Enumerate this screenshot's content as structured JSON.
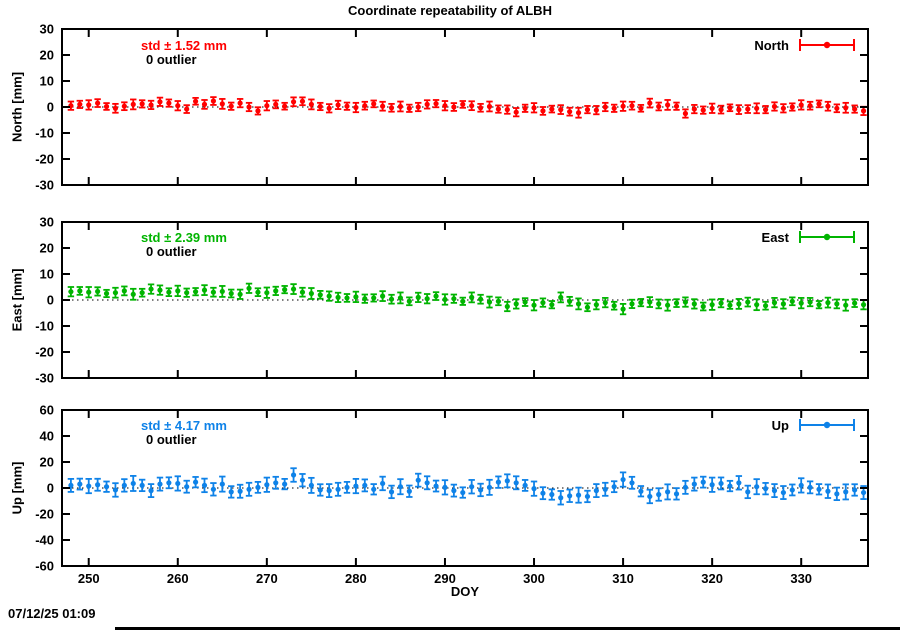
{
  "title": "Coordinate repeatability of ALBH",
  "timestamp": "07/12/25 01:09",
  "axes": {
    "xlabel": "DOY",
    "xlim": [
      247,
      337.5
    ],
    "xticks": [
      250,
      260,
      270,
      280,
      290,
      300,
      310,
      320,
      330
    ],
    "grid": "zero-line-dotted",
    "legend_position": "top-right-inside"
  },
  "chart_data": [
    {
      "type": "errorbar",
      "name": "North",
      "legend_label": "North",
      "std_label": "std ± 1.52 mm",
      "outlier_label": "0 outlier",
      "color": "#ff0000",
      "ylabel": "North [mm]",
      "ylim": [
        -30,
        30
      ],
      "yticks": [
        -30,
        -20,
        -10,
        0,
        10,
        20,
        30
      ],
      "x": [
        248,
        249,
        250,
        251,
        252,
        253,
        254,
        255,
        256,
        257,
        258,
        259,
        260,
        261,
        262,
        263,
        264,
        265,
        266,
        267,
        268,
        269,
        270,
        271,
        272,
        273,
        274,
        275,
        276,
        277,
        278,
        279,
        280,
        281,
        282,
        283,
        284,
        285,
        286,
        287,
        288,
        289,
        290,
        291,
        292,
        293,
        294,
        295,
        296,
        297,
        298,
        299,
        300,
        301,
        302,
        303,
        304,
        305,
        306,
        307,
        308,
        309,
        310,
        311,
        312,
        313,
        314,
        315,
        316,
        317,
        318,
        319,
        320,
        321,
        322,
        323,
        324,
        325,
        326,
        327,
        328,
        329,
        330,
        331,
        332,
        333,
        334,
        335,
        336,
        337
      ],
      "y": [
        0.5,
        1.0,
        0.8,
        1.5,
        0.2,
        -0.5,
        0.3,
        1.0,
        1.2,
        0.8,
        2.0,
        1.5,
        0.5,
        -0.8,
        2.2,
        1.0,
        2.3,
        1.2,
        0.3,
        1.5,
        0.0,
        -1.5,
        0.5,
        1.0,
        0.3,
        2.0,
        2.2,
        1.0,
        0.2,
        -0.5,
        0.8,
        0.3,
        -0.2,
        0.5,
        1.2,
        0.3,
        -0.3,
        0.2,
        -0.5,
        0.0,
        1.0,
        1.3,
        0.5,
        0.0,
        1.0,
        0.5,
        -0.3,
        0.2,
        -0.8,
        -1.0,
        -2.0,
        -0.5,
        -0.3,
        -1.5,
        -0.8,
        -1.0,
        -1.8,
        -2.2,
        -1.0,
        -1.2,
        0.0,
        -0.5,
        0.3,
        0.5,
        -0.5,
        1.5,
        0.2,
        0.8,
        0.3,
        -2.5,
        -0.8,
        -1.2,
        -0.5,
        -1.0,
        -0.3,
        -1.0,
        -0.8,
        -0.5,
        -1.0,
        0.2,
        -0.5,
        0.0,
        0.8,
        0.5,
        1.2,
        0.3,
        -0.5,
        -0.3,
        -0.8,
        -1.5
      ],
      "yerr": [
        1.6,
        1.4,
        1.8,
        1.5,
        1.3,
        1.7,
        1.5,
        1.9,
        1.4,
        1.6,
        1.6,
        1.4,
        1.8,
        1.5,
        1.3,
        1.7,
        1.5,
        1.9,
        1.4,
        1.6,
        1.6,
        1.4,
        1.8,
        1.5,
        1.3,
        1.7,
        1.5,
        1.9,
        1.4,
        1.6,
        1.6,
        1.4,
        1.8,
        1.5,
        1.3,
        1.7,
        1.5,
        1.9,
        1.4,
        1.6,
        1.6,
        1.4,
        1.8,
        1.5,
        1.3,
        1.7,
        1.5,
        1.9,
        1.4,
        1.6,
        1.6,
        1.4,
        1.8,
        1.5,
        1.3,
        1.7,
        1.5,
        1.9,
        1.4,
        1.6,
        1.6,
        1.4,
        1.8,
        1.5,
        1.3,
        1.7,
        1.5,
        1.9,
        1.4,
        1.6,
        1.6,
        1.4,
        1.8,
        1.5,
        1.3,
        1.7,
        1.5,
        1.9,
        1.4,
        1.6,
        1.6,
        1.4,
        1.8,
        1.5,
        1.3,
        1.7,
        1.5,
        1.9,
        1.4,
        1.6
      ]
    },
    {
      "type": "errorbar",
      "name": "East",
      "legend_label": "East",
      "std_label": "std ± 2.39 mm",
      "outlier_label": "0 outlier",
      "color": "#00b400",
      "ylabel": "East [mm]",
      "ylim": [
        -30,
        30
      ],
      "yticks": [
        -30,
        -20,
        -10,
        0,
        10,
        20,
        30
      ],
      "x": [
        248,
        249,
        250,
        251,
        252,
        253,
        254,
        255,
        256,
        257,
        258,
        259,
        260,
        261,
        262,
        263,
        264,
        265,
        266,
        267,
        268,
        269,
        270,
        271,
        272,
        273,
        274,
        275,
        276,
        277,
        278,
        279,
        280,
        281,
        282,
        283,
        284,
        285,
        286,
        287,
        288,
        289,
        290,
        291,
        292,
        293,
        294,
        295,
        296,
        297,
        298,
        299,
        300,
        301,
        302,
        303,
        304,
        305,
        306,
        307,
        308,
        309,
        310,
        311,
        312,
        313,
        314,
        315,
        316,
        317,
        318,
        319,
        320,
        321,
        322,
        323,
        324,
        325,
        326,
        327,
        328,
        329,
        330,
        331,
        332,
        333,
        334,
        335,
        336,
        337
      ],
      "y": [
        3.2,
        3.5,
        3.0,
        3.3,
        2.5,
        2.8,
        3.5,
        2.2,
        2.8,
        4.2,
        3.8,
        3.0,
        3.5,
        2.8,
        3.2,
        3.8,
        3.0,
        3.3,
        2.5,
        2.2,
        4.5,
        3.0,
        2.8,
        3.5,
        4.0,
        4.2,
        3.0,
        2.5,
        2.0,
        1.5,
        1.0,
        0.8,
        1.2,
        0.5,
        0.8,
        1.5,
        0.3,
        0.8,
        -0.5,
        1.0,
        0.5,
        1.5,
        0.2,
        0.5,
        -0.5,
        1.0,
        0.3,
        -0.8,
        -0.5,
        -2.5,
        -1.5,
        -0.8,
        -2.0,
        -1.0,
        -1.8,
        1.0,
        -0.5,
        -1.5,
        -2.8,
        -1.8,
        -1.0,
        -2.2,
        -3.5,
        -1.5,
        -1.0,
        -0.8,
        -1.5,
        -2.0,
        -1.2,
        -0.8,
        -1.5,
        -2.5,
        -1.8,
        -1.2,
        -2.0,
        -1.5,
        -0.8,
        -1.8,
        -2.2,
        -1.0,
        -1.5,
        -0.5,
        -1.2,
        -0.8,
        -1.8,
        -1.0,
        -1.5,
        -2.0,
        -1.2,
        -1.8
      ],
      "yerr": [
        1.8,
        1.5,
        2.0,
        1.6,
        1.4,
        1.9,
        1.7,
        2.1,
        1.5,
        1.8,
        1.8,
        1.5,
        2.0,
        1.6,
        1.4,
        1.9,
        1.7,
        2.1,
        1.5,
        1.8,
        1.8,
        1.5,
        2.0,
        1.6,
        1.4,
        1.9,
        1.7,
        2.1,
        1.5,
        1.8,
        1.8,
        1.5,
        2.0,
        1.6,
        1.4,
        1.9,
        1.7,
        2.1,
        1.5,
        1.8,
        1.8,
        1.5,
        2.0,
        1.6,
        1.4,
        1.9,
        1.7,
        2.1,
        1.5,
        1.8,
        1.8,
        1.5,
        2.0,
        1.6,
        1.4,
        1.9,
        1.7,
        2.1,
        1.5,
        1.8,
        1.8,
        1.5,
        2.0,
        1.6,
        1.4,
        1.9,
        1.7,
        2.1,
        1.5,
        1.8,
        1.8,
        1.5,
        2.0,
        1.6,
        1.4,
        1.9,
        1.7,
        2.1,
        1.5,
        1.8,
        1.8,
        1.5,
        2.0,
        1.6,
        1.4,
        1.9,
        1.7,
        2.1,
        1.5,
        1.8
      ]
    },
    {
      "type": "errorbar",
      "name": "Up",
      "legend_label": "Up",
      "std_label": "std ± 4.17 mm",
      "outlier_label": "0 outlier",
      "color": "#0e82e8",
      "ylabel": "Up [mm]",
      "ylim": [
        -60,
        60
      ],
      "yticks": [
        -60,
        -40,
        -20,
        0,
        20,
        40,
        60
      ],
      "x": [
        248,
        249,
        250,
        251,
        252,
        253,
        254,
        255,
        256,
        257,
        258,
        259,
        260,
        261,
        262,
        263,
        264,
        265,
        266,
        267,
        268,
        269,
        270,
        271,
        272,
        273,
        274,
        275,
        276,
        277,
        278,
        279,
        280,
        281,
        282,
        283,
        284,
        285,
        286,
        287,
        288,
        289,
        290,
        291,
        292,
        293,
        294,
        295,
        296,
        297,
        298,
        299,
        300,
        301,
        302,
        303,
        304,
        305,
        306,
        307,
        308,
        309,
        310,
        311,
        312,
        313,
        314,
        315,
        316,
        317,
        318,
        319,
        320,
        321,
        322,
        323,
        324,
        325,
        326,
        327,
        328,
        329,
        330,
        331,
        332,
        333,
        334,
        335,
        336,
        337
      ],
      "y": [
        2.0,
        3.0,
        1.5,
        2.5,
        1.0,
        -1.5,
        2.0,
        3.5,
        2.0,
        -2.0,
        3.0,
        4.0,
        3.5,
        1.0,
        4.5,
        2.0,
        -1.0,
        3.0,
        -3.0,
        -2.5,
        -1.0,
        0.5,
        2.5,
        4.0,
        3.0,
        10.0,
        6.0,
        2.0,
        -1.5,
        -2.0,
        -1.0,
        0.5,
        1.5,
        2.0,
        -1.0,
        3.5,
        -3.0,
        1.0,
        -2.5,
        6.0,
        4.0,
        1.5,
        0.5,
        -2.0,
        -3.5,
        1.0,
        -1.5,
        0.5,
        4.5,
        5.5,
        4.0,
        2.0,
        -0.5,
        -4.0,
        -5.0,
        -7.5,
        -6.0,
        -5.5,
        -6.5,
        -2.0,
        -1.0,
        1.0,
        6.5,
        4.0,
        -2.5,
        -6.5,
        -5.0,
        -3.0,
        -4.5,
        0.5,
        3.0,
        4.5,
        2.5,
        3.5,
        1.5,
        4.0,
        -3.0,
        1.0,
        -0.5,
        -2.0,
        -3.5,
        -1.5,
        2.0,
        0.5,
        -1.0,
        -2.5,
        -4.5,
        -3.0,
        -1.5,
        -3.5
      ],
      "yerr": [
        5.0,
        4.2,
        5.5,
        4.6,
        4.0,
        5.2,
        4.8,
        5.8,
        4.4,
        5.0,
        5.0,
        4.2,
        5.5,
        4.6,
        4.0,
        5.2,
        4.8,
        5.8,
        4.4,
        5.0,
        5.0,
        4.2,
        5.5,
        4.6,
        4.0,
        5.2,
        4.8,
        5.8,
        4.4,
        5.0,
        5.0,
        4.2,
        5.5,
        4.6,
        4.0,
        5.2,
        4.8,
        5.8,
        4.4,
        5.0,
        5.0,
        4.2,
        5.5,
        4.6,
        4.0,
        5.2,
        4.8,
        5.8,
        4.4,
        5.0,
        5.0,
        4.2,
        5.5,
        4.6,
        4.0,
        5.2,
        4.8,
        5.8,
        4.4,
        5.0,
        5.0,
        4.2,
        5.5,
        4.6,
        4.0,
        5.2,
        4.8,
        5.8,
        4.4,
        5.0,
        5.0,
        4.2,
        5.5,
        4.6,
        4.0,
        5.2,
        4.8,
        5.8,
        4.4,
        5.0,
        5.0,
        4.2,
        5.5,
        4.6,
        4.0,
        5.2,
        4.8,
        5.8,
        4.4,
        5.0
      ]
    }
  ]
}
